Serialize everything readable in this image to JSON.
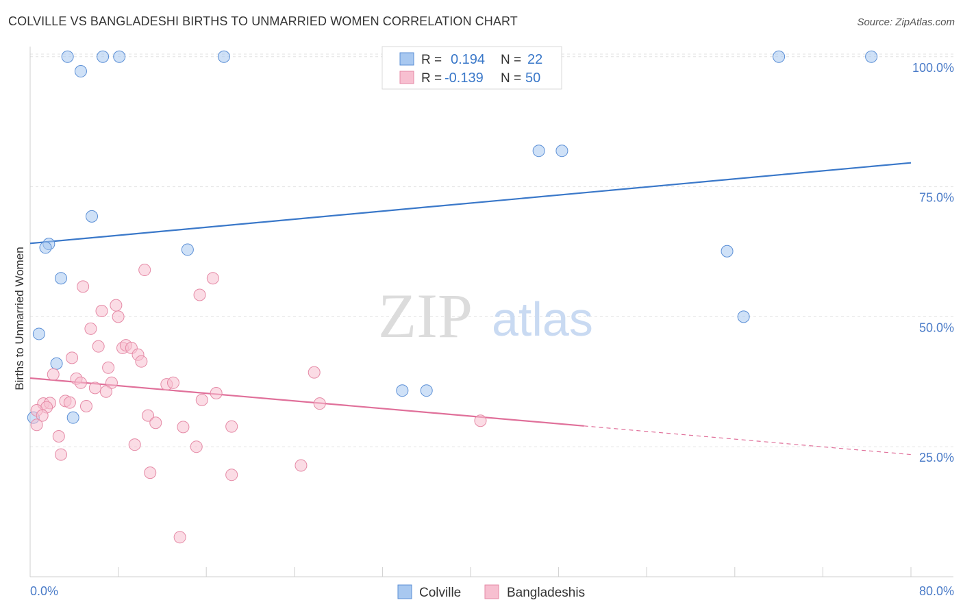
{
  "title": "COLVILLE VS BANGLADESHI BIRTHS TO UNMARRIED WOMEN CORRELATION CHART",
  "source": "Source: ZipAtlas.com",
  "watermark": {
    "zip": "ZIP",
    "atlas": "atlas"
  },
  "legend": {
    "r_label": "R =",
    "n_label": "N =",
    "rows": [
      {
        "name": "Colville",
        "r": "0.194",
        "n": "22",
        "color": "#a8c8f0",
        "stroke": "#5b8fd6"
      },
      {
        "name": "Bangladeshis",
        "r": "-0.139",
        "n": "50",
        "color": "#f7bfd0",
        "stroke": "#e58aa6"
      }
    ]
  },
  "bottom_legend": [
    "Colville",
    "Bangladeshis"
  ],
  "chart_data": {
    "type": "scatter",
    "title": "COLVILLE VS BANGLADESHI BIRTHS TO UNMARRIED WOMEN CORRELATION CHART",
    "xlabel": "",
    "ylabel": "Births to Unmarried Women",
    "xlim": [
      0,
      80
    ],
    "ylim": [
      0,
      103
    ],
    "x_tick_labels": [
      "0.0%",
      "80.0%"
    ],
    "y_ticks": [
      25,
      50,
      75,
      100
    ],
    "y_tick_labels": [
      "25.0%",
      "50.0%",
      "75.0%",
      "100.0%"
    ],
    "grid": true,
    "legend_position": "top-center",
    "series": [
      {
        "name": "Colville",
        "color": "#a8c8f0",
        "line_color": "#3a78c9",
        "trend": {
          "x0": 0,
          "y0": 64.1,
          "x1": 80,
          "y1": 79.6
        },
        "points": [
          [
            3.4,
            100
          ],
          [
            6.6,
            100
          ],
          [
            8.1,
            100
          ],
          [
            17.6,
            100
          ],
          [
            68.0,
            100
          ],
          [
            76.4,
            100
          ],
          [
            4.6,
            97.2
          ],
          [
            46.2,
            81.9
          ],
          [
            48.3,
            81.9
          ],
          [
            5.6,
            69.3
          ],
          [
            1.7,
            64.0
          ],
          [
            1.4,
            63.3
          ],
          [
            14.3,
            62.9
          ],
          [
            63.3,
            62.6
          ],
          [
            2.8,
            57.4
          ],
          [
            64.8,
            50.0
          ],
          [
            0.8,
            46.7
          ],
          [
            2.4,
            41.0
          ],
          [
            33.8,
            35.8
          ],
          [
            36.0,
            35.8
          ],
          [
            3.9,
            30.6
          ],
          [
            0.3,
            30.6
          ]
        ]
      },
      {
        "name": "Bangladeshis",
        "color": "#f7bfd0",
        "line_color": "#e0709a",
        "trend": {
          "x0": 0,
          "y0": 38.2,
          "x1": 50.3,
          "y1": 29.0
        },
        "trend_dashed": {
          "x0": 50.3,
          "y0": 29.0,
          "x1": 80,
          "y1": 23.5
        },
        "points": [
          [
            10.4,
            59.0
          ],
          [
            16.6,
            57.4
          ],
          [
            4.8,
            55.8
          ],
          [
            15.4,
            54.2
          ],
          [
            7.8,
            52.2
          ],
          [
            6.5,
            51.1
          ],
          [
            8.0,
            50.0
          ],
          [
            5.5,
            47.7
          ],
          [
            6.2,
            44.3
          ],
          [
            8.4,
            44.0
          ],
          [
            8.7,
            44.5
          ],
          [
            9.2,
            44.0
          ],
          [
            9.8,
            42.7
          ],
          [
            3.8,
            42.1
          ],
          [
            10.1,
            41.4
          ],
          [
            7.1,
            40.2
          ],
          [
            25.8,
            39.3
          ],
          [
            2.1,
            38.9
          ],
          [
            4.2,
            38.1
          ],
          [
            4.6,
            37.3
          ],
          [
            7.4,
            37.3
          ],
          [
            12.4,
            37.0
          ],
          [
            13.0,
            37.3
          ],
          [
            5.9,
            36.3
          ],
          [
            6.9,
            35.6
          ],
          [
            16.9,
            35.3
          ],
          [
            15.6,
            34.0
          ],
          [
            3.2,
            33.8
          ],
          [
            3.6,
            33.5
          ],
          [
            1.2,
            33.3
          ],
          [
            1.8,
            33.4
          ],
          [
            1.5,
            32.6
          ],
          [
            5.1,
            32.8
          ],
          [
            26.3,
            33.3
          ],
          [
            0.6,
            32.0
          ],
          [
            1.1,
            31.0
          ],
          [
            10.7,
            31.0
          ],
          [
            11.4,
            29.6
          ],
          [
            40.9,
            30.0
          ],
          [
            0.6,
            29.2
          ],
          [
            13.9,
            28.8
          ],
          [
            18.3,
            28.9
          ],
          [
            2.6,
            27.0
          ],
          [
            9.5,
            25.4
          ],
          [
            15.1,
            25.0
          ],
          [
            2.8,
            23.5
          ],
          [
            24.6,
            21.4
          ],
          [
            10.9,
            20.0
          ],
          [
            18.3,
            19.6
          ],
          [
            13.6,
            7.6
          ]
        ]
      }
    ]
  }
}
